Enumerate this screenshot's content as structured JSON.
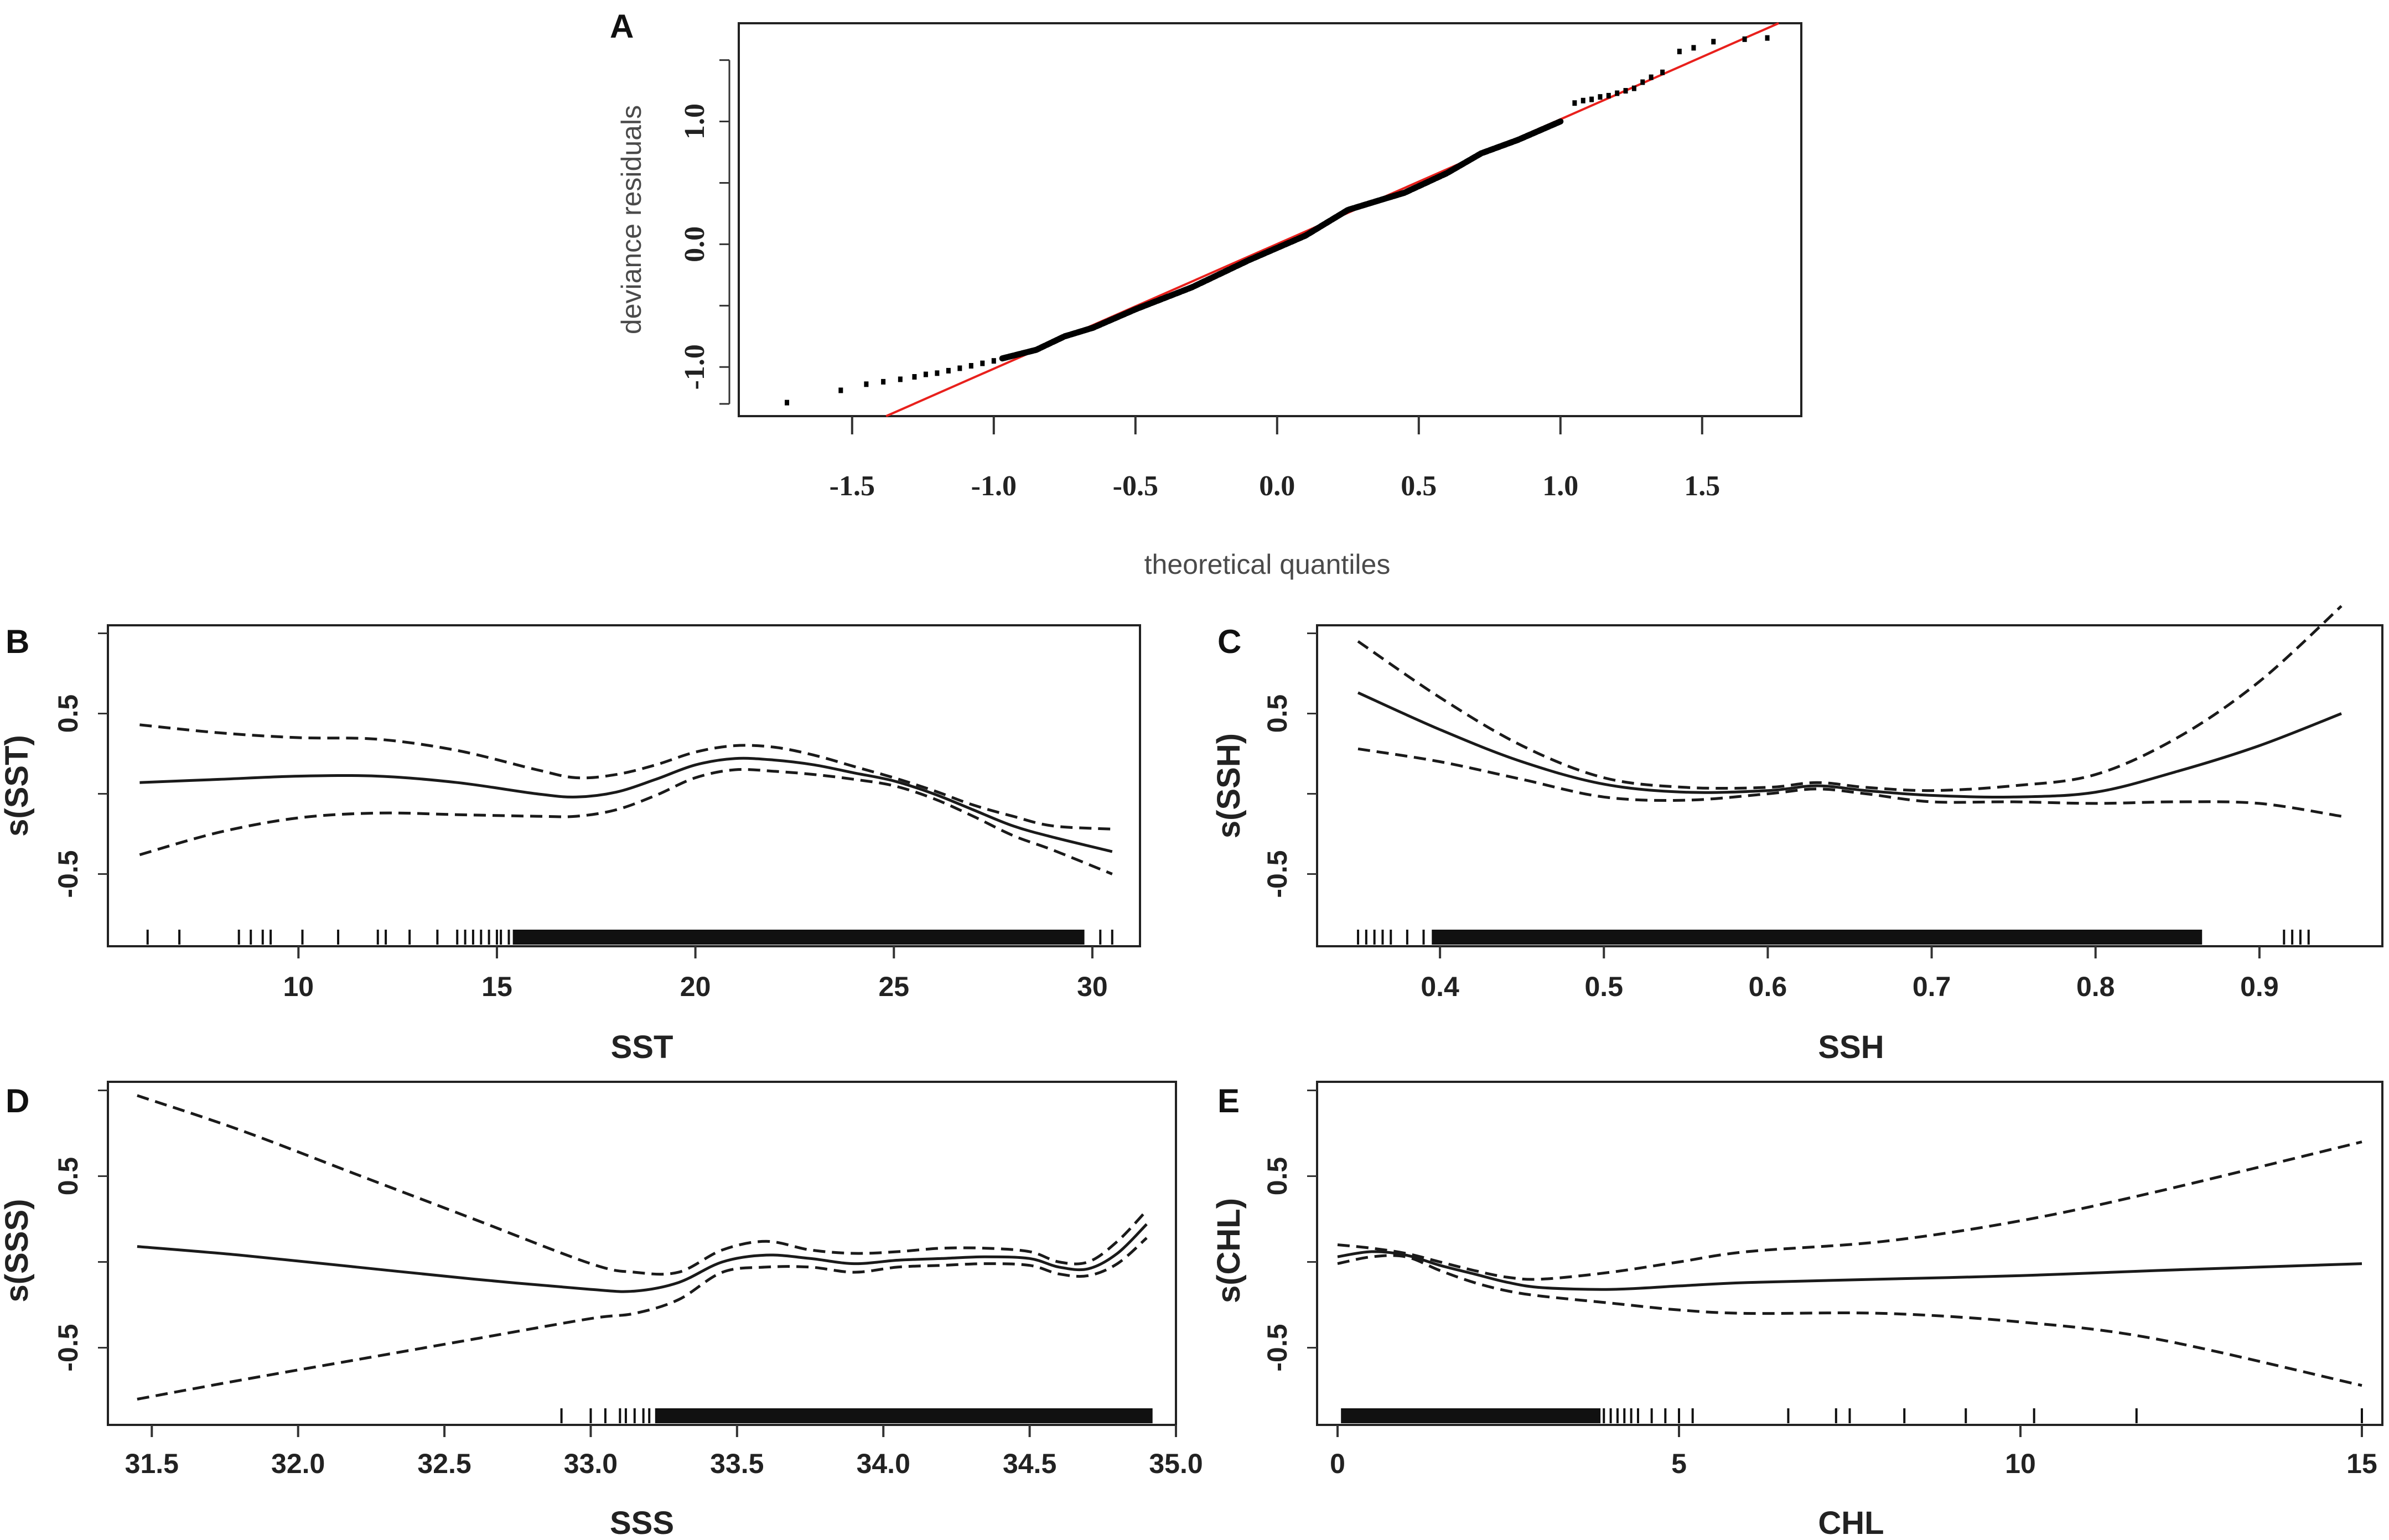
{
  "figure_colors": {
    "reference_line": "#e8201c",
    "points": "#000000",
    "curves": "#1a1a1a"
  },
  "chart_data": [
    {
      "panel": "A",
      "type": "scatter",
      "title": "",
      "xlabel": "theoretical quantiles",
      "ylabel": "deviance residuals",
      "xlim": [
        -1.9,
        1.85
      ],
      "ylim": [
        -1.4,
        1.8
      ],
      "xticks": [
        -1.5,
        -1.0,
        -0.5,
        0.0,
        0.5,
        1.0,
        1.5
      ],
      "xtick_labels": [
        "-1.5",
        "-1.0",
        "-0.5",
        "0.0",
        "0.5",
        "1.0",
        "1.5"
      ],
      "yticks": [
        -1.0,
        0.0,
        1.0
      ],
      "ytick_labels": [
        "-1.0",
        "0.0",
        "1.0"
      ],
      "reference_line": [
        [
          -1.38,
          -1.4
        ],
        [
          1.77,
          1.8
        ]
      ],
      "tail_points": [
        [
          -1.73,
          -1.29
        ],
        [
          -1.54,
          -1.19
        ],
        [
          -1.45,
          -1.14
        ],
        [
          -1.39,
          -1.12
        ],
        [
          -1.33,
          -1.1
        ],
        [
          -1.28,
          -1.08
        ],
        [
          -1.24,
          -1.06
        ],
        [
          -1.2,
          -1.05
        ],
        [
          -1.16,
          -1.03
        ],
        [
          -1.12,
          -1.01
        ],
        [
          -1.08,
          -0.99
        ],
        [
          -1.04,
          -0.97
        ],
        [
          -1.0,
          -0.95
        ],
        [
          1.05,
          1.15
        ],
        [
          1.08,
          1.17
        ],
        [
          1.11,
          1.18
        ],
        [
          1.14,
          1.2
        ],
        [
          1.17,
          1.21
        ],
        [
          1.2,
          1.23
        ],
        [
          1.23,
          1.25
        ],
        [
          1.26,
          1.27
        ],
        [
          1.29,
          1.32
        ],
        [
          1.32,
          1.36
        ],
        [
          1.36,
          1.4
        ],
        [
          1.42,
          1.57
        ],
        [
          1.47,
          1.6
        ],
        [
          1.54,
          1.65
        ],
        [
          1.65,
          1.67
        ],
        [
          1.73,
          1.68
        ]
      ],
      "body_curve": [
        [
          -0.97,
          -0.93
        ],
        [
          -0.85,
          -0.86
        ],
        [
          -0.75,
          -0.75
        ],
        [
          -0.65,
          -0.68
        ],
        [
          -0.5,
          -0.53
        ],
        [
          -0.3,
          -0.35
        ],
        [
          -0.1,
          -0.13
        ],
        [
          0.0,
          -0.03
        ],
        [
          0.1,
          0.07
        ],
        [
          0.25,
          0.28
        ],
        [
          0.45,
          0.42
        ],
        [
          0.6,
          0.58
        ],
        [
          0.72,
          0.74
        ],
        [
          0.85,
          0.85
        ],
        [
          1.0,
          1.0
        ]
      ]
    },
    {
      "panel": "B",
      "type": "line",
      "xlabel": "SST",
      "ylabel": "s(SST)",
      "xlim": [
        5.2,
        31.2
      ],
      "ylim": [
        -0.95,
        1.05
      ],
      "xticks": [
        10,
        15,
        20,
        25,
        30
      ],
      "xtick_labels": [
        "10",
        "15",
        "20",
        "25",
        "30"
      ],
      "yticks": [
        0.5,
        -0.5
      ],
      "ytick_labels": [
        "0.5",
        "-0.5"
      ],
      "series": [
        {
          "name": "fit",
          "style": "solid",
          "x": [
            6,
            8,
            10,
            12,
            14,
            16,
            17,
            18,
            19,
            20,
            21,
            22,
            23,
            24,
            25,
            26,
            27,
            28,
            29,
            30.5
          ],
          "y": [
            0.07,
            0.09,
            0.11,
            0.11,
            0.07,
            0.0,
            -0.02,
            0.01,
            0.09,
            0.18,
            0.22,
            0.21,
            0.18,
            0.13,
            0.08,
            0.0,
            -0.1,
            -0.2,
            -0.27,
            -0.36
          ]
        },
        {
          "name": "upper",
          "style": "dashed",
          "x": [
            6,
            8,
            10,
            12,
            14,
            16,
            17,
            18,
            19,
            20,
            21,
            22,
            23,
            24,
            25,
            26,
            27,
            28,
            29,
            30.5
          ],
          "y": [
            0.43,
            0.38,
            0.35,
            0.34,
            0.27,
            0.15,
            0.1,
            0.12,
            0.18,
            0.26,
            0.3,
            0.29,
            0.24,
            0.17,
            0.1,
            0.02,
            -0.07,
            -0.14,
            -0.2,
            -0.22
          ]
        },
        {
          "name": "lower",
          "style": "dashed",
          "x": [
            6,
            8,
            10,
            12,
            14,
            16,
            17,
            18,
            19,
            20,
            21,
            22,
            23,
            24,
            25,
            26,
            27,
            28,
            29,
            30.5
          ],
          "y": [
            -0.38,
            -0.24,
            -0.15,
            -0.12,
            -0.13,
            -0.14,
            -0.14,
            -0.1,
            -0.01,
            0.1,
            0.15,
            0.14,
            0.12,
            0.09,
            0.05,
            -0.03,
            -0.14,
            -0.26,
            -0.35,
            -0.5
          ]
        }
      ],
      "rug_sparse": [
        6.2,
        7.0,
        8.5,
        8.8,
        9.1,
        9.3,
        10.1,
        11.0,
        12.0,
        12.2,
        12.8,
        13.5,
        14.0,
        14.2,
        14.4,
        14.6,
        14.8,
        15.0,
        15.1,
        15.3
      ],
      "rug_dense": [
        15.4,
        29.8
      ],
      "rug_tail": [
        30.2,
        30.5
      ]
    },
    {
      "panel": "C",
      "type": "line",
      "xlabel": "SSH",
      "ylabel": "s(SSH)",
      "xlim": [
        0.325,
        0.975
      ],
      "ylim": [
        -0.95,
        1.05
      ],
      "xticks": [
        0.4,
        0.5,
        0.6,
        0.7,
        0.8,
        0.9
      ],
      "xtick_labels": [
        "0.4",
        "0.5",
        "0.6",
        "0.7",
        "0.8",
        "0.9"
      ],
      "yticks": [
        0.5,
        -0.5
      ],
      "ytick_labels": [
        "0.5",
        "-0.5"
      ],
      "series": [
        {
          "name": "fit",
          "style": "solid",
          "x": [
            0.35,
            0.4,
            0.45,
            0.5,
            0.55,
            0.6,
            0.63,
            0.66,
            0.7,
            0.75,
            0.8,
            0.85,
            0.9,
            0.95
          ],
          "y": [
            0.63,
            0.4,
            0.2,
            0.06,
            0.01,
            0.02,
            0.05,
            0.02,
            -0.01,
            -0.02,
            0.01,
            0.14,
            0.3,
            0.5
          ]
        },
        {
          "name": "upper",
          "style": "dashed",
          "x": [
            0.35,
            0.4,
            0.45,
            0.5,
            0.55,
            0.6,
            0.63,
            0.66,
            0.7,
            0.75,
            0.8,
            0.85,
            0.9,
            0.95
          ],
          "y": [
            0.95,
            0.6,
            0.3,
            0.1,
            0.04,
            0.04,
            0.07,
            0.04,
            0.02,
            0.05,
            0.12,
            0.35,
            0.7,
            1.17
          ]
        },
        {
          "name": "lower",
          "style": "dashed",
          "x": [
            0.35,
            0.4,
            0.45,
            0.5,
            0.55,
            0.6,
            0.63,
            0.66,
            0.7,
            0.75,
            0.8,
            0.85,
            0.9,
            0.95
          ],
          "y": [
            0.28,
            0.2,
            0.09,
            -0.02,
            -0.04,
            0.0,
            0.03,
            0.0,
            -0.05,
            -0.05,
            -0.06,
            -0.05,
            -0.06,
            -0.14
          ]
        }
      ],
      "rug_sparse": [
        0.35,
        0.355,
        0.36,
        0.365,
        0.37,
        0.38,
        0.39
      ],
      "rug_dense": [
        0.395,
        0.865
      ],
      "rug_tail": [
        0.915,
        0.92,
        0.925,
        0.93
      ]
    },
    {
      "panel": "D",
      "type": "line",
      "xlabel": "SSS",
      "ylabel": "s(SSS)",
      "xlim": [
        31.35,
        35.0
      ],
      "ylim": [
        -0.95,
        1.05
      ],
      "xticks": [
        31.5,
        32.0,
        32.5,
        33.0,
        33.5,
        34.0,
        34.5,
        35.0
      ],
      "xtick_labels": [
        "31.5",
        "32.0",
        "32.5",
        "33.0",
        "33.5",
        "34.0",
        "34.5",
        "35.0"
      ],
      "yticks": [
        0.5,
        -0.5
      ],
      "ytick_labels": [
        "0.5",
        "-0.5"
      ],
      "series": [
        {
          "name": "fit",
          "style": "solid",
          "x": [
            31.45,
            31.8,
            32.2,
            32.6,
            33.0,
            33.15,
            33.3,
            33.45,
            33.6,
            33.75,
            33.9,
            34.05,
            34.2,
            34.35,
            34.5,
            34.6,
            34.7,
            34.8,
            34.9
          ],
          "y": [
            0.09,
            0.04,
            -0.03,
            -0.1,
            -0.16,
            -0.17,
            -0.12,
            0.0,
            0.04,
            0.02,
            -0.01,
            0.01,
            0.02,
            0.03,
            0.02,
            -0.03,
            -0.04,
            0.05,
            0.22
          ]
        },
        {
          "name": "upper",
          "style": "dashed",
          "x": [
            31.45,
            31.8,
            32.2,
            32.6,
            33.0,
            33.15,
            33.3,
            33.45,
            33.6,
            33.75,
            33.9,
            34.05,
            34.2,
            34.35,
            34.5,
            34.6,
            34.7,
            34.8,
            34.9
          ],
          "y": [
            0.97,
            0.77,
            0.51,
            0.25,
            -0.01,
            -0.06,
            -0.06,
            0.07,
            0.12,
            0.07,
            0.05,
            0.06,
            0.08,
            0.08,
            0.06,
            0.0,
            0.0,
            0.12,
            0.3
          ]
        },
        {
          "name": "lower",
          "style": "dashed",
          "x": [
            31.45,
            31.8,
            32.2,
            32.6,
            33.0,
            33.15,
            33.3,
            33.45,
            33.6,
            33.75,
            33.9,
            34.05,
            34.2,
            34.35,
            34.5,
            34.6,
            34.7,
            34.8,
            34.9
          ],
          "y": [
            -0.8,
            -0.69,
            -0.57,
            -0.45,
            -0.33,
            -0.3,
            -0.22,
            -0.06,
            -0.03,
            -0.03,
            -0.06,
            -0.03,
            -0.02,
            -0.01,
            -0.02,
            -0.07,
            -0.08,
            -0.01,
            0.14
          ]
        }
      ],
      "rug_sparse": [
        32.9,
        33.0,
        33.05,
        33.1,
        33.12,
        33.15,
        33.18,
        33.2
      ],
      "rug_dense": [
        33.22,
        34.92
      ],
      "rug_tail": []
    },
    {
      "panel": "E",
      "type": "line",
      "xlabel": "CHL",
      "ylabel": "s(CHL)",
      "xlim": [
        -0.3,
        15.3
      ],
      "ylim": [
        -0.95,
        1.05
      ],
      "xticks": [
        0,
        5,
        10,
        15
      ],
      "xtick_labels": [
        "0",
        "5",
        "10",
        "15"
      ],
      "yticks": [
        0.5,
        -0.5
      ],
      "ytick_labels": [
        "0.5",
        "-0.5"
      ],
      "series": [
        {
          "name": "fit",
          "style": "solid",
          "x": [
            0,
            0.5,
            1,
            1.5,
            2,
            2.5,
            3,
            4,
            5,
            6,
            8,
            10,
            12,
            15
          ],
          "y": [
            0.03,
            0.06,
            0.04,
            -0.02,
            -0.07,
            -0.12,
            -0.15,
            -0.16,
            -0.14,
            -0.12,
            -0.1,
            -0.08,
            -0.05,
            -0.01
          ]
        },
        {
          "name": "upper",
          "style": "dashed",
          "x": [
            0,
            0.5,
            1,
            1.5,
            2,
            2.5,
            3,
            4,
            5,
            6,
            8,
            10,
            12,
            15
          ],
          "y": [
            0.1,
            0.08,
            0.05,
            0.0,
            -0.05,
            -0.09,
            -0.1,
            -0.06,
            0.0,
            0.06,
            0.12,
            0.24,
            0.41,
            0.7
          ]
        },
        {
          "name": "lower",
          "style": "dashed",
          "x": [
            0,
            0.5,
            1,
            1.5,
            2,
            2.5,
            3,
            4,
            5,
            6,
            8,
            10,
            12,
            15
          ],
          "y": [
            -0.01,
            0.03,
            0.03,
            -0.05,
            -0.12,
            -0.17,
            -0.2,
            -0.24,
            -0.28,
            -0.3,
            -0.3,
            -0.35,
            -0.45,
            -0.72
          ]
        }
      ],
      "rug_sparse": [
        3.9,
        4.0,
        4.1,
        4.2,
        4.3,
        4.4,
        4.6,
        4.8,
        5.0,
        5.2,
        6.6,
        7.3,
        7.5,
        8.3,
        9.2,
        10.2,
        11.7,
        15.0
      ],
      "rug_dense": [
        0.05,
        3.85
      ],
      "rug_tail": []
    }
  ]
}
